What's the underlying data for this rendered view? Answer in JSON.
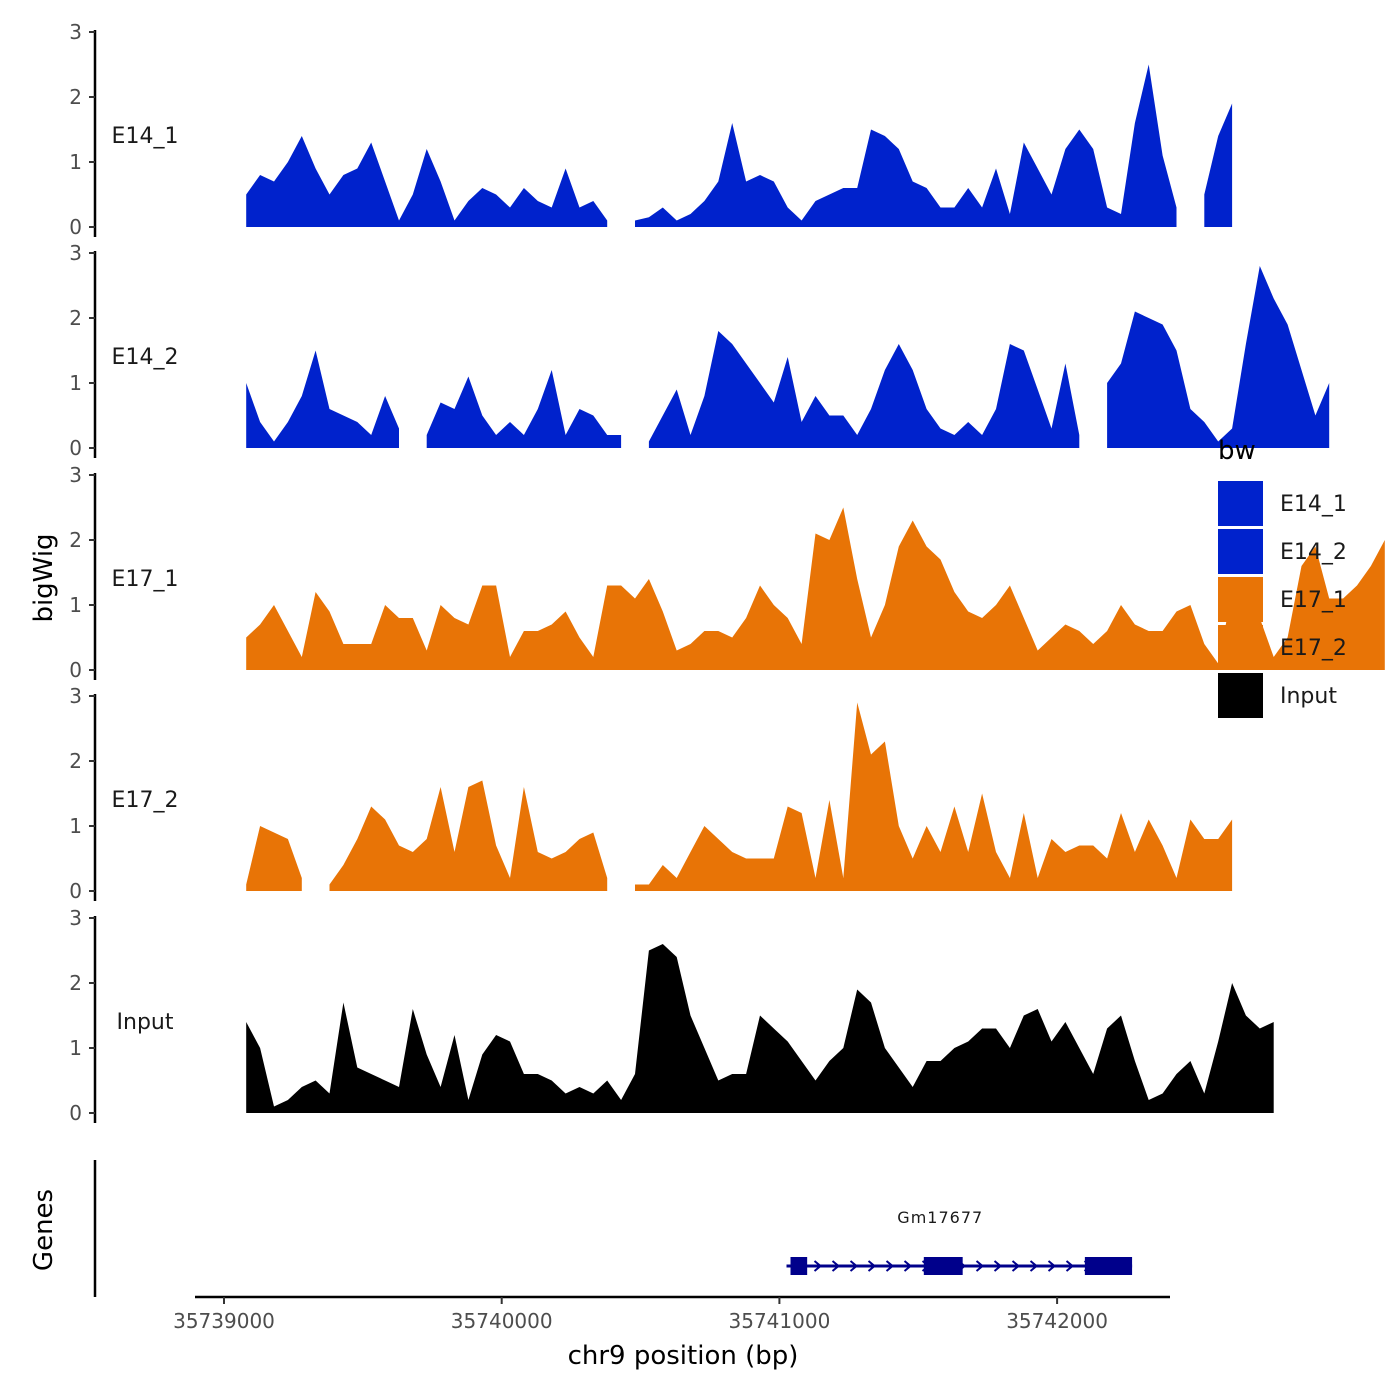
{
  "chart_data": {
    "type": "area",
    "title": "",
    "xlabel": "chr9 position (bp)",
    "ylabel": "bigWig",
    "genes_label": "Genes",
    "xlim": [
      35738900,
      35742400
    ],
    "x_ticks": [
      35739000,
      35740000,
      35741000,
      35742000
    ],
    "x_tick_labels": [
      "35739000",
      "35740000",
      "35741000",
      "35742000"
    ],
    "ylim": [
      0,
      3
    ],
    "y_ticks": [
      0,
      1,
      2,
      3
    ],
    "y_tick_labels": [
      "0",
      "1",
      "2",
      "3"
    ],
    "x_start": 35739080,
    "x_step": 50,
    "legend": {
      "title": "bw",
      "position": "right",
      "entries": [
        {
          "name": "E14_1",
          "color": "#0022cc"
        },
        {
          "name": "E14_2",
          "color": "#0022cc"
        },
        {
          "name": "E17_1",
          "color": "#e87406"
        },
        {
          "name": "E17_2",
          "color": "#e87406"
        },
        {
          "name": "Input",
          "color": "#000000"
        }
      ]
    },
    "series": [
      {
        "name": "E14_1",
        "color": "#0022cc",
        "values": [
          0.5,
          0.8,
          0.7,
          1.0,
          1.4,
          0.9,
          0.5,
          0.8,
          0.9,
          1.3,
          0.7,
          0.1,
          0.5,
          1.2,
          0.7,
          0.1,
          0.4,
          0.6,
          0.5,
          0.3,
          0.6,
          0.4,
          0.3,
          0.9,
          0.3,
          0.4,
          0.1,
          null,
          0.1,
          0.15,
          0.3,
          0.1,
          0.2,
          0.4,
          0.7,
          1.6,
          0.7,
          0.8,
          0.7,
          0.3,
          0.1,
          0.4,
          0.5,
          0.6,
          0.6,
          1.5,
          1.4,
          1.2,
          0.7,
          0.6,
          0.3,
          0.3,
          0.6,
          0.3,
          0.9,
          0.2,
          1.3,
          0.9,
          0.5,
          1.2,
          1.5,
          1.2,
          0.3,
          0.2,
          1.6,
          2.5,
          1.1,
          0.3,
          null,
          0.5,
          1.4,
          1.9
        ]
      },
      {
        "name": "E14_2",
        "color": "#0022cc",
        "values": [
          1.0,
          0.4,
          0.1,
          0.4,
          0.8,
          1.5,
          0.6,
          0.5,
          0.4,
          0.2,
          0.8,
          0.3,
          null,
          0.2,
          0.7,
          0.6,
          1.1,
          0.5,
          0.2,
          0.4,
          0.2,
          0.6,
          1.2,
          0.2,
          0.6,
          0.5,
          0.2,
          0.2,
          null,
          0.1,
          0.5,
          0.9,
          0.2,
          0.8,
          1.8,
          1.6,
          1.3,
          1.0,
          0.7,
          1.4,
          0.4,
          0.8,
          0.5,
          0.5,
          0.2,
          0.6,
          1.2,
          1.6,
          1.2,
          0.6,
          0.3,
          0.2,
          0.4,
          0.2,
          0.6,
          1.6,
          1.5,
          0.9,
          0.3,
          1.3,
          0.2,
          null,
          1.0,
          1.3,
          2.1,
          2.0,
          1.9,
          1.5,
          0.6,
          0.4,
          0.1,
          0.3,
          1.6,
          2.8,
          2.3,
          1.9,
          1.2,
          0.5,
          1.0
        ]
      },
      {
        "name": "E17_1",
        "color": "#e87406",
        "values": [
          0.5,
          0.7,
          1.0,
          0.6,
          0.2,
          1.2,
          0.9,
          0.4,
          0.4,
          0.4,
          1.0,
          0.8,
          0.8,
          0.3,
          1.0,
          0.8,
          0.7,
          1.3,
          1.3,
          0.2,
          0.6,
          0.6,
          0.7,
          0.9,
          0.5,
          0.2,
          1.3,
          1.3,
          1.1,
          1.4,
          0.9,
          0.3,
          0.4,
          0.6,
          0.6,
          0.5,
          0.8,
          1.3,
          1.0,
          0.8,
          0.4,
          2.1,
          2.0,
          2.5,
          1.4,
          0.5,
          1.0,
          1.9,
          2.3,
          1.9,
          1.7,
          1.2,
          0.9,
          0.8,
          1.0,
          1.3,
          0.8,
          0.3,
          0.5,
          0.7,
          0.6,
          0.4,
          0.6,
          1.0,
          0.7,
          0.6,
          0.6,
          0.9,
          1.0,
          0.4,
          0.1,
          1.2,
          1.2,
          0.8,
          0.2,
          0.5,
          1.6,
          1.9,
          1.1,
          1.1,
          1.3,
          1.6,
          2.0
        ]
      },
      {
        "name": "E17_2",
        "color": "#e87406",
        "values": [
          0.1,
          1.0,
          0.9,
          0.8,
          0.2,
          null,
          0.1,
          0.4,
          0.8,
          1.3,
          1.1,
          0.7,
          0.6,
          0.8,
          1.6,
          0.6,
          1.6,
          1.7,
          0.7,
          0.2,
          1.6,
          0.6,
          0.5,
          0.6,
          0.8,
          0.9,
          0.2,
          null,
          0.1,
          0.1,
          0.4,
          0.2,
          0.6,
          1.0,
          0.8,
          0.6,
          0.5,
          0.5,
          0.5,
          1.3,
          1.2,
          0.2,
          1.4,
          0.2,
          2.9,
          2.1,
          2.3,
          1.0,
          0.5,
          1.0,
          0.6,
          1.3,
          0.6,
          1.5,
          0.6,
          0.2,
          1.2,
          0.2,
          0.8,
          0.6,
          0.7,
          0.7,
          0.5,
          1.2,
          0.6,
          1.1,
          0.7,
          0.2,
          1.1,
          0.8,
          0.8,
          1.1
        ]
      },
      {
        "name": "Input",
        "color": "#000000",
        "values": [
          1.4,
          1.0,
          0.1,
          0.2,
          0.4,
          0.5,
          0.3,
          1.7,
          0.7,
          0.6,
          0.5,
          0.4,
          1.6,
          0.9,
          0.4,
          1.2,
          0.2,
          0.9,
          1.2,
          1.1,
          0.6,
          0.6,
          0.5,
          0.3,
          0.4,
          0.3,
          0.5,
          0.2,
          0.6,
          2.5,
          2.6,
          2.4,
          1.5,
          1.0,
          0.5,
          0.6,
          0.6,
          1.5,
          1.3,
          1.1,
          0.8,
          0.5,
          0.8,
          1.0,
          1.9,
          1.7,
          1.0,
          0.7,
          0.4,
          0.8,
          0.8,
          1.0,
          1.1,
          1.3,
          1.3,
          1.0,
          1.5,
          1.6,
          1.1,
          1.4,
          1.0,
          0.6,
          1.3,
          1.5,
          0.8,
          0.2,
          0.3,
          0.6,
          0.8,
          0.3,
          1.1,
          2.0,
          1.5,
          1.3,
          1.4
        ]
      }
    ],
    "genes": [
      {
        "name": "Gm17677",
        "start": 35741040,
        "end": 35742270,
        "strand": "+",
        "exons": [
          [
            35741040,
            35741100
          ],
          [
            35741520,
            35741660
          ],
          [
            35742100,
            35742270
          ]
        ]
      }
    ]
  }
}
